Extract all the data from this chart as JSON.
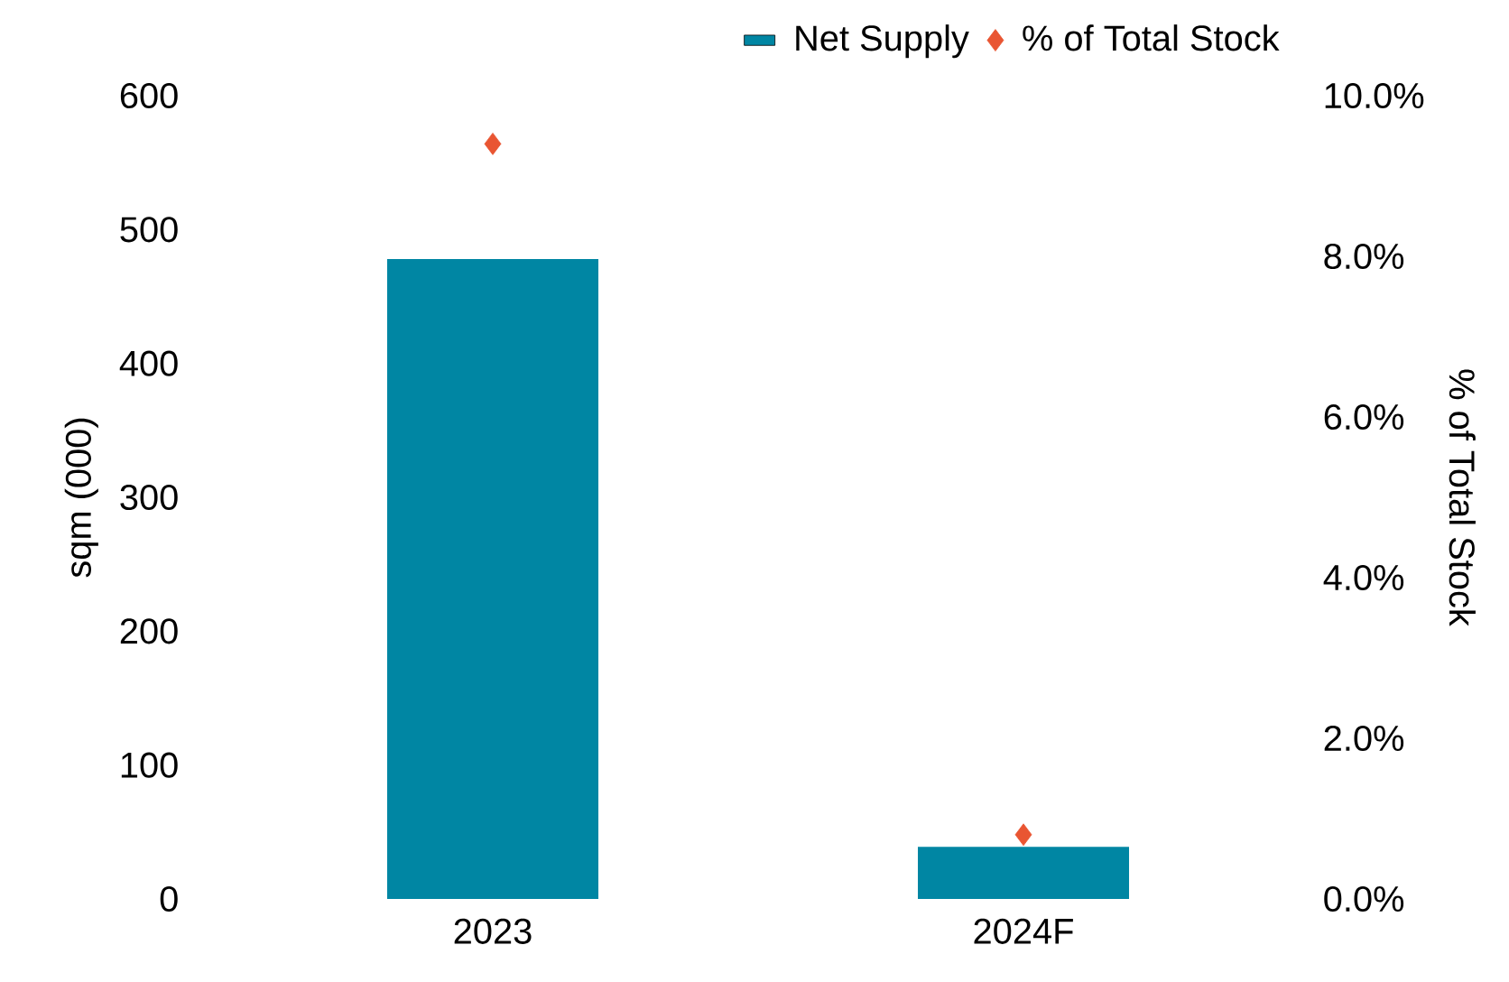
{
  "chart_data": {
    "type": "bar",
    "categories": [
      "2023",
      "2024F"
    ],
    "series": [
      {
        "name": "Net Supply",
        "color": "#0086a3",
        "values": [
          478,
          39
        ]
      },
      {
        "name": "% of Total Stock",
        "type": "scatter",
        "axis": "y2",
        "marker": "diamond",
        "color": "#e95532",
        "values": [
          9.4,
          0.8
        ]
      }
    ],
    "ylabel": "sqm (000)",
    "y2label": "% of Total Stock",
    "ylim": [
      0,
      600
    ],
    "yticks": [
      0,
      100,
      200,
      300,
      400,
      500,
      600
    ],
    "y2lim": [
      0,
      10
    ],
    "y2ticks": [
      {
        "value": 0,
        "label": "0.0%"
      },
      {
        "value": 2,
        "label": "2.0%"
      },
      {
        "value": 4,
        "label": "4.0%"
      },
      {
        "value": 6,
        "label": "6.0%"
      },
      {
        "value": 8,
        "label": "8.0%"
      },
      {
        "value": 10,
        "label": "10.0%"
      }
    ],
    "legend": "top right"
  }
}
